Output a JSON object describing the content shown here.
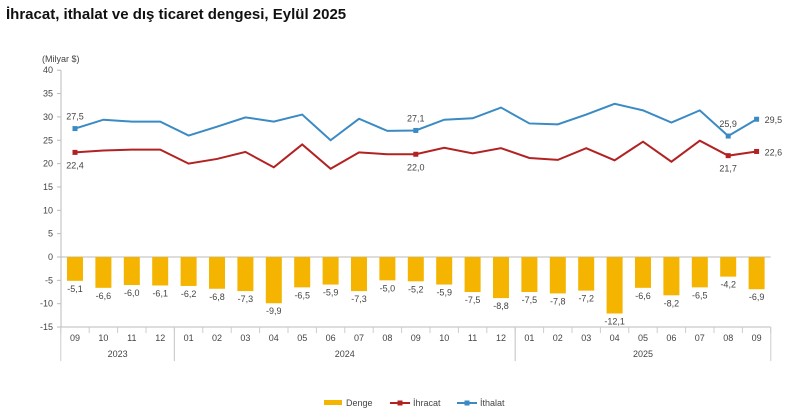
{
  "title": "İhracat, ithalat ve dış ticaret dengesi, Eylül 2025",
  "chart_data": {
    "type": "bar+line",
    "title": "İhracat, ithalat ve dış ticaret dengesi, Eylül 2025",
    "ylabel": "(Milyar $)",
    "ylim": [
      -15,
      40
    ],
    "yticks": [
      40,
      35,
      30,
      25,
      20,
      15,
      10,
      5,
      0,
      -5,
      -10,
      -15
    ],
    "grid": false,
    "legend_position": "bottom",
    "categories": [
      "09",
      "10",
      "11",
      "12",
      "01",
      "02",
      "03",
      "04",
      "05",
      "06",
      "07",
      "08",
      "09",
      "10",
      "11",
      "12",
      "01",
      "02",
      "03",
      "04",
      "05",
      "06",
      "07",
      "08",
      "09"
    ],
    "years": [
      {
        "label": "2023",
        "from": 0,
        "to": 3
      },
      {
        "label": "2024",
        "from": 4,
        "to": 15
      },
      {
        "label": "2025",
        "from": 16,
        "to": 24
      }
    ],
    "series": [
      {
        "name": "Denge",
        "type": "bar",
        "color": "#F5B400",
        "values": [
          -5.1,
          -6.6,
          -6.0,
          -6.1,
          -6.2,
          -6.8,
          -7.3,
          -9.9,
          -6.5,
          -5.9,
          -7.3,
          -5.0,
          -5.2,
          -5.9,
          -7.5,
          -8.8,
          -7.5,
          -7.8,
          -7.2,
          -12.1,
          -6.6,
          -8.2,
          -6.5,
          -4.2,
          -6.9
        ],
        "labels": [
          "-5,1",
          "-6,6",
          "-6,0",
          "-6,1",
          "-6,2",
          "-6,8",
          "-7,3",
          "-9,9",
          "-6,5",
          "-5,9",
          "-7,3",
          "-5,0",
          "-5,2",
          "-5,9",
          "-7,5",
          "-8,8",
          "-7,5",
          "-7,8",
          "-7,2",
          "-12,1",
          "-6,6",
          "-8,2",
          "-6,5",
          "-4,2",
          "-6,9"
        ]
      },
      {
        "name": "İhracat",
        "type": "line",
        "color": "#B22222",
        "values": [
          22.4,
          22.8,
          23.0,
          23.0,
          20.0,
          21.0,
          22.5,
          19.2,
          24.1,
          18.9,
          22.4,
          22.0,
          22.0,
          23.4,
          22.2,
          23.3,
          21.2,
          20.8,
          23.3,
          20.7,
          24.7,
          20.4,
          24.9,
          21.7,
          22.6
        ],
        "point_labels": {
          "0": "22,4",
          "12": "22,0",
          "23": "21,7",
          "24": "22,6"
        }
      },
      {
        "name": "İthalat",
        "type": "line",
        "color": "#3A8AC4",
        "values": [
          27.5,
          29.4,
          29.0,
          29.0,
          26.0,
          27.9,
          29.9,
          29.0,
          30.5,
          25.0,
          29.6,
          27.0,
          27.1,
          29.4,
          29.7,
          32.0,
          28.6,
          28.4,
          30.5,
          32.8,
          31.4,
          28.8,
          31.4,
          25.9,
          29.5
        ],
        "point_labels": {
          "0": "27,5",
          "12": "27,1",
          "23": "25,9",
          "24": "29,5"
        }
      }
    ]
  }
}
